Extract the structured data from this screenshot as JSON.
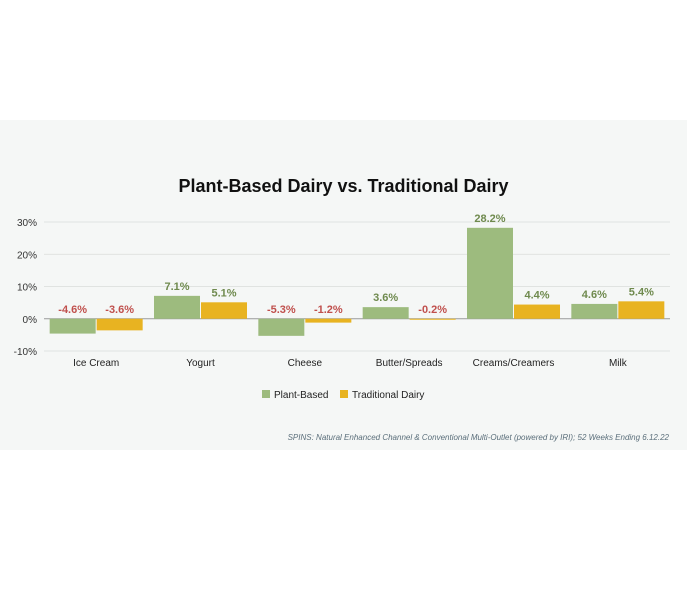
{
  "chart_data": {
    "type": "bar",
    "title": "Plant-Based Dairy vs. Traditional Dairy",
    "categories": [
      "Ice Cream",
      "Yogurt",
      "Cheese",
      "Butter/Spreads",
      "Creams/Creamers",
      "Milk"
    ],
    "series": [
      {
        "name": "Plant-Based",
        "values": [
          -4.6,
          7.1,
          -5.3,
          3.6,
          28.2,
          4.6
        ],
        "labels": [
          "-4.6%",
          "7.1%",
          "-5.3%",
          "3.6%",
          "28.2%",
          "4.6%"
        ],
        "color": "#9dbb7e"
      },
      {
        "name": "Traditional Dairy",
        "values": [
          -3.6,
          5.1,
          -1.2,
          -0.2,
          4.4,
          5.4
        ],
        "labels": [
          "-3.6%",
          "5.1%",
          "-1.2%",
          "-0.2%",
          "4.4%",
          "5.4%"
        ],
        "color": "#e8b321"
      }
    ],
    "yticks": [
      -10,
      0,
      10,
      20,
      30
    ],
    "ytick_labels": [
      "-10%",
      "0%",
      "10%",
      "20%",
      "30%"
    ],
    "ylim": [
      -10,
      30
    ],
    "grid": true,
    "legend_position": "bottom-center",
    "positive_label_color": "#6f8a4e",
    "negative_label_color": "#c0504d",
    "source": "SPINS: Natural Enhanced Channel & Conventional Multi-Outlet (powered by IRI); 52 Weeks Ending 6.12.22"
  }
}
